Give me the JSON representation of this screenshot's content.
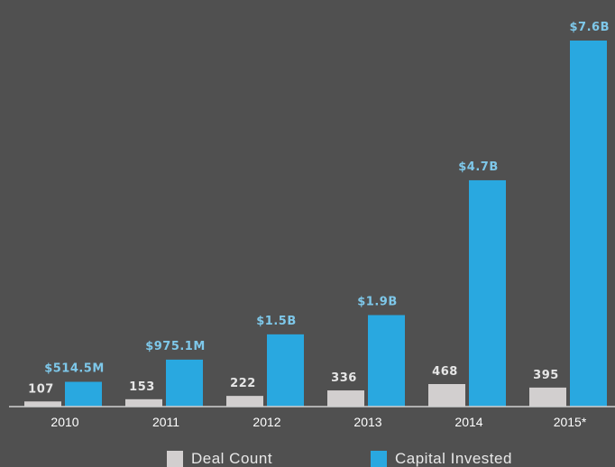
{
  "chart_data": {
    "type": "bar",
    "categories": [
      "2010",
      "2011",
      "2012",
      "2013",
      "2014",
      "2015*"
    ],
    "series": [
      {
        "name": "Deal Count",
        "values": [
          107,
          153,
          222,
          336,
          468,
          395
        ],
        "labels": [
          "107",
          "153",
          "222",
          "336",
          "468",
          "395"
        ],
        "color": "#d2cfcf",
        "label_color": "#e6e6e6"
      },
      {
        "name": "Capital Invested",
        "values": [
          514.5,
          975.1,
          1500,
          1900,
          4700,
          7600
        ],
        "labels": [
          "$514.5M",
          "$975.1M",
          "$1.5B",
          "$1.9B",
          "$4.7B",
          "$7.6B"
        ],
        "color": "#29a8e0",
        "label_color": "#7ec8ea"
      }
    ],
    "title": "",
    "xlabel": "",
    "ylabel": "",
    "grid": false,
    "legend_position": "bottom",
    "background": "#505050",
    "axis_color": "#d0d0d0"
  }
}
